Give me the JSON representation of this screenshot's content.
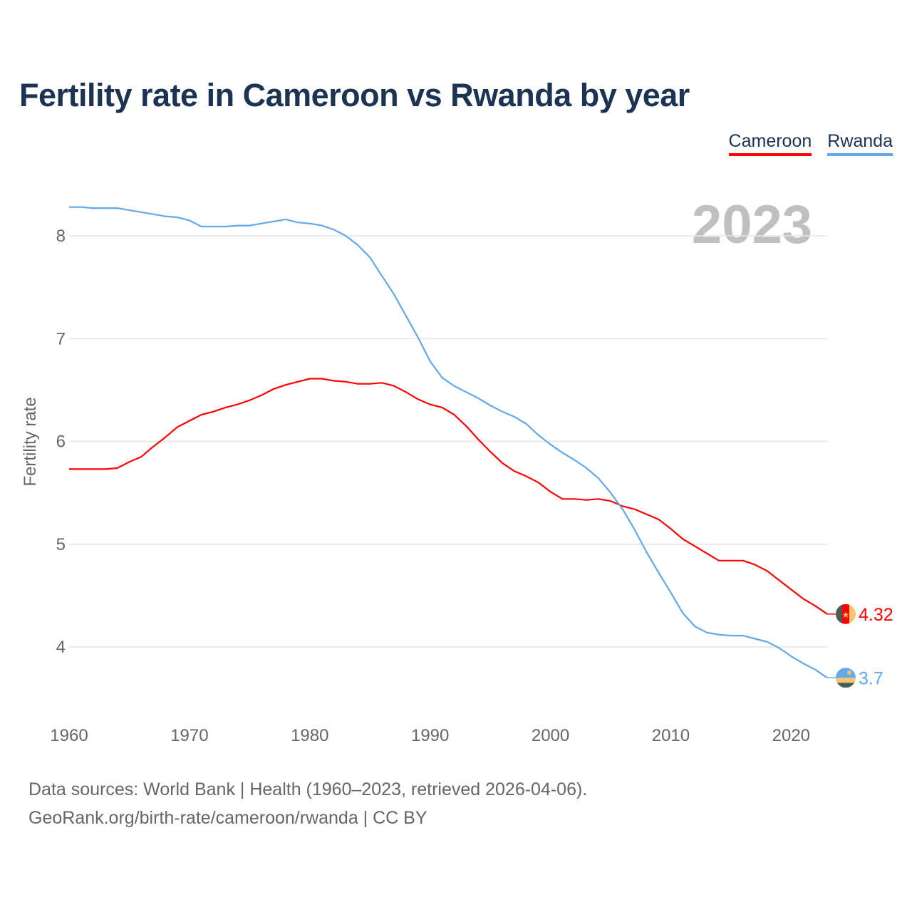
{
  "title": "Fertility rate in Cameroon vs Rwanda by year",
  "year_watermark": "2023",
  "footer": {
    "line1": "Data sources: World Bank | Health (1960–2023, retrieved 2026-04-06).",
    "line2": "GeoRank.org/birth-rate/cameroon/rwanda | CC BY"
  },
  "chart_data": {
    "type": "line",
    "title": "Fertility rate in Cameroon vs Rwanda by year",
    "xlabel": "",
    "ylabel": "Fertility rate",
    "xlim": [
      1960,
      2023
    ],
    "ylim": [
      3.5,
      8.5
    ],
    "xticks": [
      "1960",
      "1970",
      "1980",
      "1990",
      "2000",
      "2010",
      "2020"
    ],
    "yticks": [
      "4",
      "5",
      "6",
      "7",
      "8"
    ],
    "legend_position": "top-right",
    "x_start": 1960,
    "series": [
      {
        "name": "Cameroon",
        "color": "#ff0000",
        "end_label": "4.32",
        "flag": "cameroon-flag",
        "values": [
          5.73,
          5.73,
          5.73,
          5.73,
          5.74,
          5.8,
          5.85,
          5.95,
          6.04,
          6.14,
          6.2,
          6.26,
          6.29,
          6.33,
          6.36,
          6.4,
          6.45,
          6.51,
          6.55,
          6.58,
          6.61,
          6.61,
          6.59,
          6.58,
          6.56,
          6.56,
          6.57,
          6.54,
          6.48,
          6.41,
          6.36,
          6.33,
          6.26,
          6.15,
          6.02,
          5.9,
          5.79,
          5.71,
          5.66,
          5.6,
          5.51,
          5.44,
          5.44,
          5.43,
          5.44,
          5.42,
          5.37,
          5.34,
          5.29,
          5.24,
          5.15,
          5.05,
          4.98,
          4.91,
          4.84,
          4.84,
          4.84,
          4.8,
          4.74,
          4.65,
          4.56,
          4.47,
          4.4,
          4.32
        ]
      },
      {
        "name": "Rwanda",
        "color": "#62a8ea",
        "end_label": "3.7",
        "flag": "rwanda-flag",
        "values": [
          8.28,
          8.28,
          8.27,
          8.27,
          8.27,
          8.25,
          8.23,
          8.21,
          8.19,
          8.18,
          8.15,
          8.09,
          8.09,
          8.09,
          8.1,
          8.1,
          8.12,
          8.14,
          8.16,
          8.13,
          8.12,
          8.1,
          8.06,
          8.0,
          7.91,
          7.79,
          7.61,
          7.43,
          7.22,
          7.01,
          6.78,
          6.62,
          6.54,
          6.48,
          6.42,
          6.35,
          6.29,
          6.24,
          6.17,
          6.06,
          5.97,
          5.89,
          5.82,
          5.74,
          5.64,
          5.5,
          5.34,
          5.14,
          4.92,
          4.72,
          4.53,
          4.33,
          4.2,
          4.14,
          4.12,
          4.11,
          4.11,
          4.08,
          4.05,
          3.99,
          3.91,
          3.84,
          3.78,
          3.7
        ]
      }
    ]
  }
}
